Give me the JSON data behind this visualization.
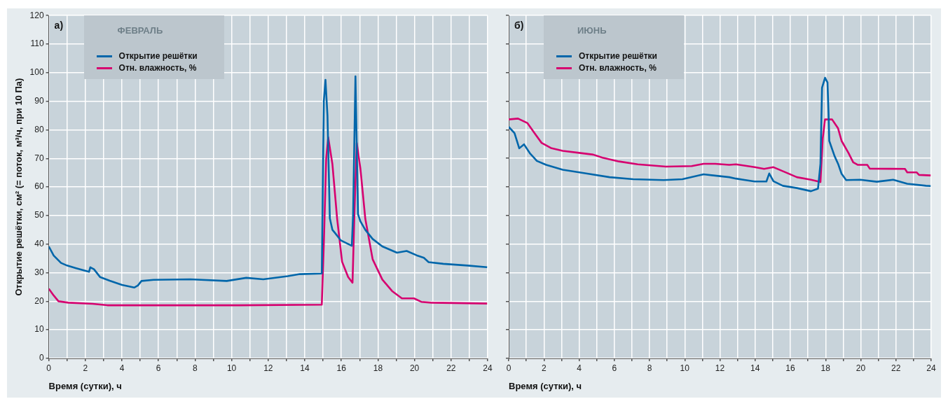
{
  "chart_data": [
    {
      "type": "line",
      "title": "ФЕВРАЛЬ",
      "xlabel": "Время (сутки), ч",
      "ylabel": "Открытие решётки, см² (= поток, м³/ч, при 10 Па)",
      "annotations": [
        "а)"
      ],
      "legend": "top left",
      "grid": true,
      "xlim": [
        0,
        24
      ],
      "ylim": [
        0,
        120
      ],
      "xticks": [
        0,
        {
          "value": 1,
          "label": null
        },
        2,
        {
          "value": 3,
          "label": null
        },
        4,
        {
          "value": 5,
          "label": null
        },
        6,
        {
          "value": 7,
          "label": null
        },
        8,
        {
          "value": 9,
          "label": null
        },
        10,
        {
          "value": 11,
          "label": null
        },
        12,
        {
          "value": 13,
          "label": null
        },
        14,
        {
          "value": 15,
          "label": null
        },
        16,
        {
          "value": 17,
          "label": null
        },
        18,
        {
          "value": 19,
          "label": null
        },
        20,
        {
          "value": 21,
          "label": null
        },
        22,
        {
          "value": 23,
          "label": null
        },
        24
      ],
      "yticks": [
        0,
        10,
        20,
        30,
        40,
        50,
        60,
        70,
        80,
        90,
        100,
        110,
        120
      ],
      "series": [
        {
          "name": "Открытие решётки",
          "color": "#0066aa",
          "x": [
            0,
            0.27,
            0.67,
            1,
            1.47,
            2.2,
            2.27,
            2.47,
            2.8,
            3.33,
            4,
            4.67,
            4.87,
            5.07,
            5.73,
            7.73,
            9.73,
            10.8,
            11.73,
            13.07,
            13.73,
            14.93,
            15.04,
            15.13,
            15.24,
            15.37,
            15.51,
            15.64,
            15.97,
            16.57,
            16.64,
            16.77,
            16.91,
            17.04,
            17.31,
            17.71,
            18.24,
            19.04,
            19.57,
            20.11,
            20.51,
            20.77,
            21.57,
            22.91,
            23.97
          ],
          "values": [
            39.2,
            36,
            33.4,
            32.5,
            31.6,
            30.3,
            31.9,
            31.2,
            28.5,
            27.2,
            25.7,
            24.8,
            25.5,
            27.1,
            27.5,
            27.7,
            27.1,
            28.2,
            27.7,
            28.8,
            29.5,
            29.7,
            90,
            97.5,
            85,
            49,
            45,
            44,
            41.3,
            39.4,
            50,
            98.7,
            50.5,
            48,
            45,
            41.8,
            39.2,
            37,
            37.6,
            36.1,
            35.2,
            33.7,
            33.1,
            32.5,
            31.9
          ]
        },
        {
          "name": "Отн. влажность, %",
          "color": "#d6006f",
          "x": [
            0,
            0.27,
            0.53,
            1.07,
            2.4,
            3.2,
            10.4,
            14.93,
            15.04,
            15.17,
            15.28,
            15.51,
            15.77,
            16.04,
            16.37,
            16.61,
            16.71,
            16.84,
            17.04,
            17.31,
            17.71,
            18.24,
            18.77,
            19.31,
            19.97,
            20.37,
            20.91,
            23.97
          ],
          "values": [
            24.4,
            22,
            20,
            19.5,
            19.1,
            18.6,
            18.6,
            18.8,
            40,
            70,
            77.4,
            68,
            48.8,
            33.8,
            28.5,
            26.5,
            50,
            75.4,
            66.5,
            48.8,
            34.7,
            27.6,
            23.6,
            21,
            21,
            19.8,
            19.5,
            19.2
          ]
        }
      ]
    },
    {
      "type": "line",
      "title": "ИЮНЬ",
      "xlabel": "Время (сутки), ч",
      "annotations": [
        "б)"
      ],
      "legend": "top left",
      "grid": true,
      "tick_labels": "x",
      "xlim": [
        0,
        24
      ],
      "ylim": [
        0,
        120
      ],
      "xticks": [
        0,
        {
          "value": 1,
          "label": null
        },
        2,
        {
          "value": 3,
          "label": null
        },
        4,
        {
          "value": 5,
          "label": null
        },
        6,
        {
          "value": 7,
          "label": null
        },
        8,
        {
          "value": 9,
          "label": null
        },
        10,
        {
          "value": 11,
          "label": null
        },
        12,
        {
          "value": 13,
          "label": null
        },
        14,
        {
          "value": 15,
          "label": null
        },
        16,
        {
          "value": 17,
          "label": null
        },
        18,
        {
          "value": 19,
          "label": null
        },
        20,
        {
          "value": 21,
          "label": null
        },
        22,
        {
          "value": 23,
          "label": null
        },
        24
      ],
      "yticks": [
        0,
        10,
        20,
        30,
        40,
        50,
        60,
        70,
        80,
        90,
        100,
        110,
        120
      ],
      "series": [
        {
          "name": "Открытие решётки",
          "color": "#0066aa",
          "x": [
            0,
            0.33,
            0.6,
            0.87,
            1.2,
            1.6,
            2.13,
            3.07,
            4.4,
            5.73,
            7.07,
            8.8,
            9.87,
            11.07,
            12.53,
            12.91,
            13.97,
            14.64,
            14.8,
            15.04,
            15.57,
            16.37,
            17.17,
            17.57,
            17.71,
            17.8,
            17.97,
            18.11,
            18.17,
            18.21,
            18.51,
            18.71,
            18.91,
            19.17,
            19.97,
            20.91,
            21.84,
            22.64,
            23.71,
            23.97
          ],
          "values": [
            81,
            78.8,
            73.5,
            74.9,
            71.8,
            69.1,
            67.7,
            66,
            64.7,
            63.4,
            62.7,
            62.4,
            62.7,
            64.4,
            63.4,
            62.9,
            61.9,
            61.9,
            64.7,
            62,
            60.4,
            59.6,
            58.5,
            59.4,
            68.1,
            94.7,
            98.2,
            96.5,
            85.8,
            76.1,
            70.8,
            68.1,
            64.6,
            62.4,
            62.5,
            61.8,
            62.5,
            61.1,
            60.4,
            60.3
          ]
        },
        {
          "name": "Отн. влажность, %",
          "color": "#d6006f",
          "x": [
            0,
            0.53,
            1.07,
            1.47,
            1.87,
            2.4,
            3.07,
            4,
            4.8,
            5.33,
            6.27,
            7.33,
            8.93,
            10.4,
            11.07,
            11.73,
            12.53,
            12.91,
            13.97,
            14.51,
            15.04,
            15.84,
            16.37,
            17.17,
            17.71,
            17.84,
            17.97,
            18.37,
            18.71,
            18.91,
            19.31,
            19.57,
            19.84,
            20.37,
            20.51,
            22.51,
            22.64,
            23.17,
            23.31,
            23.97
          ],
          "values": [
            83.6,
            83.9,
            82.3,
            78.8,
            75.4,
            73.6,
            72.6,
            71.9,
            71.3,
            70.2,
            68.9,
            67.9,
            67.1,
            67.3,
            68.1,
            68.1,
            67.7,
            67.9,
            66.9,
            66.3,
            66.9,
            64.8,
            63.4,
            62.5,
            61.7,
            77,
            83.6,
            83.6,
            80.5,
            76.1,
            71.8,
            68.6,
            67.7,
            67.7,
            66.4,
            66.3,
            65.1,
            65.1,
            64.2,
            64
          ]
        }
      ]
    }
  ]
}
